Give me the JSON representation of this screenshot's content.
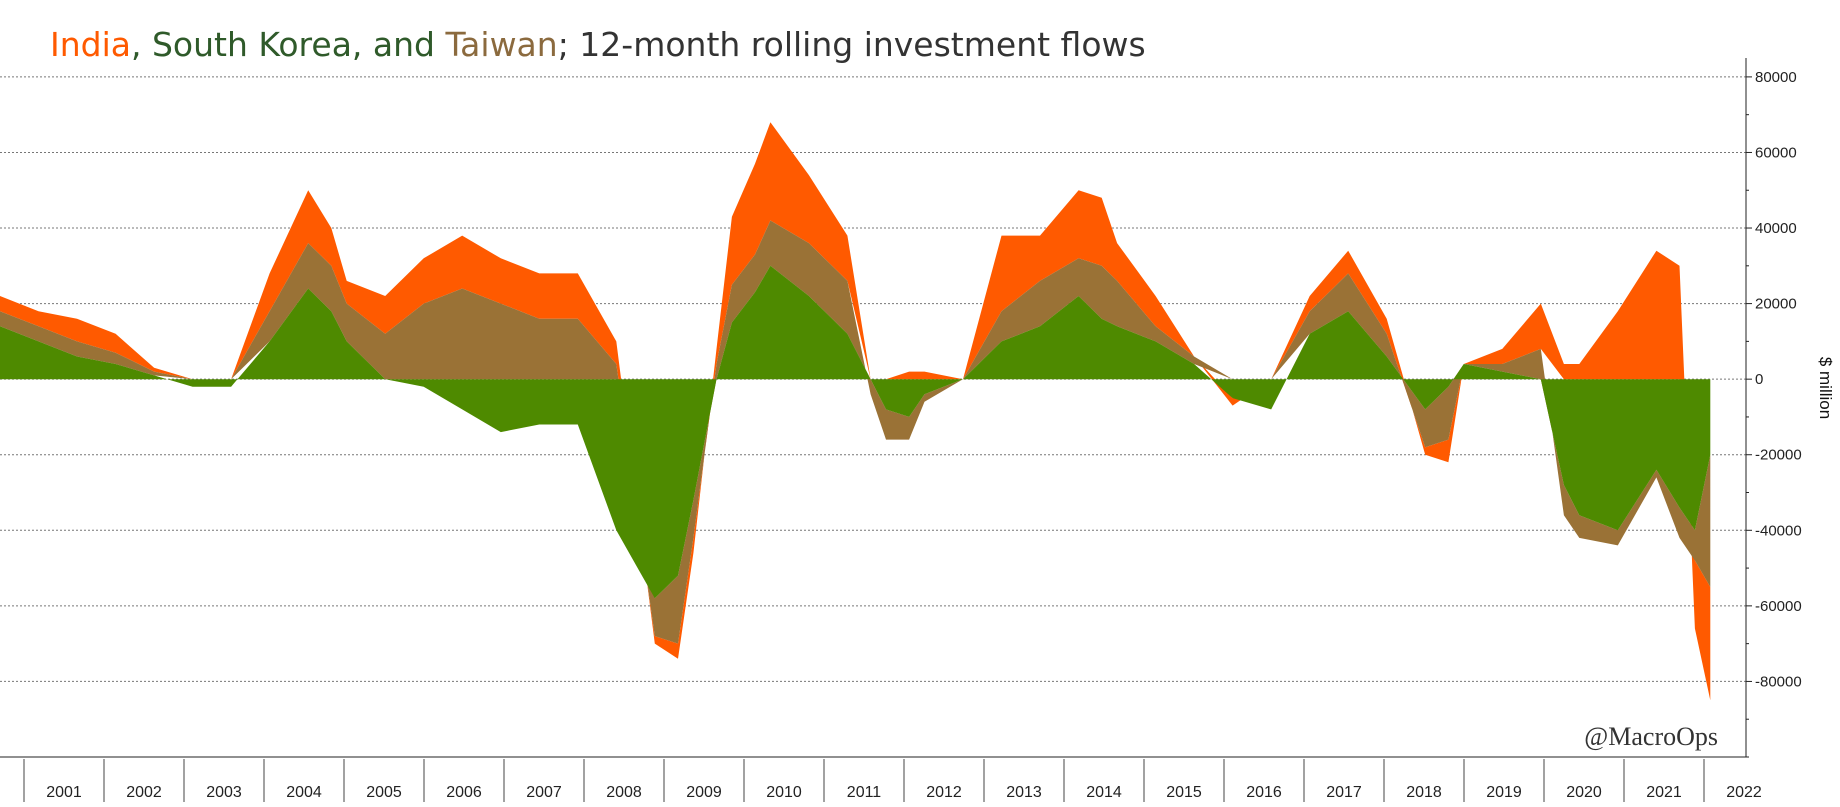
{
  "chart_data": {
    "type": "area",
    "title": {
      "parts": [
        {
          "text": "India",
          "color": "#FF5A00"
        },
        {
          "text": ", South Korea, and ",
          "color": "#2F5A2A"
        },
        {
          "text": "Taiwan",
          "color": "#8B6A3E"
        },
        {
          "text": "; 12-month rolling investment flows",
          "color": "#333333"
        }
      ]
    },
    "ylabel": "$ million",
    "xlabel": "",
    "ylim": [
      -100000,
      85000
    ],
    "xlim": [
      2000.0,
      2022.3
    ],
    "y_ticks": [
      80000,
      60000,
      40000,
      20000,
      0,
      -20000,
      -40000,
      -60000,
      -80000
    ],
    "y_tick_labels": [
      "80000",
      "60000",
      "40000",
      "20000",
      "0",
      "-20000",
      "-40000",
      "-60000",
      "-80000"
    ],
    "x_tick_labels": [
      "2001",
      "2002",
      "2003",
      "2004",
      "2005",
      "2006",
      "2007",
      "2008",
      "2009",
      "2010",
      "2011",
      "2012",
      "2013",
      "2014",
      "2015",
      "2016",
      "2017",
      "2018",
      "2019",
      "2020",
      "2021",
      "2022"
    ],
    "grid": "horizontal-dotted",
    "legend": "in-title",
    "watermark": "@MacroOps",
    "colors": {
      "korea": "#4E8A00",
      "taiwan": "#9A7236",
      "india": "#FF5A00"
    },
    "x": [
      2000.0,
      2000.5,
      2001.0,
      2001.5,
      2002.0,
      2002.5,
      2003.0,
      2003.5,
      2004.0,
      2004.3,
      2004.5,
      2005.0,
      2005.5,
      2006.0,
      2006.5,
      2007.0,
      2007.5,
      2008.0,
      2008.5,
      2008.8,
      2009.0,
      2009.3,
      2009.5,
      2009.8,
      2010.0,
      2010.5,
      2011.0,
      2011.3,
      2011.5,
      2011.8,
      2012.0,
      2012.5,
      2013.0,
      2013.5,
      2014.0,
      2014.3,
      2014.5,
      2015.0,
      2015.5,
      2016.0,
      2016.5,
      2017.0,
      2017.5,
      2018.0,
      2018.5,
      2018.8,
      2019.0,
      2019.5,
      2020.0,
      2020.3,
      2020.5,
      2021.0,
      2021.5,
      2021.8,
      2022.0,
      2022.2
    ],
    "series": [
      {
        "name": "South Korea",
        "values": [
          14000,
          10000,
          6000,
          4000,
          1000,
          -2000,
          -2000,
          10000,
          24000,
          18000,
          10000,
          0,
          -2000,
          -8000,
          -14000,
          -12000,
          -12000,
          -40000,
          -58000,
          -52000,
          -32000,
          0,
          15000,
          23000,
          30000,
          22000,
          12000,
          0,
          -8000,
          -10000,
          -4000,
          0,
          10000,
          14000,
          22000,
          16000,
          14000,
          10000,
          4000,
          -5000,
          -8000,
          12000,
          18000,
          6000,
          -8000,
          -2000,
          4000,
          2000,
          0,
          -28000,
          -36000,
          -40000,
          -24000,
          -34000,
          -40000,
          -20000
        ]
      },
      {
        "name": "Taiwan",
        "values": [
          4000,
          4000,
          4000,
          3000,
          1000,
          0,
          0,
          8000,
          12000,
          12000,
          10000,
          12000,
          20000,
          24000,
          20000,
          16000,
          16000,
          4000,
          -10000,
          -18000,
          -10000,
          4000,
          10000,
          10000,
          12000,
          14000,
          14000,
          -4000,
          -8000,
          -6000,
          -2000,
          0,
          8000,
          12000,
          10000,
          14000,
          12000,
          4000,
          2000,
          0,
          0,
          6000,
          10000,
          6000,
          -10000,
          -14000,
          0,
          2000,
          8000,
          -8000,
          -6000,
          -4000,
          -2000,
          -8000,
          -8000,
          -35000
        ]
      },
      {
        "name": "India",
        "values": [
          4000,
          4000,
          6000,
          5000,
          1000,
          0,
          0,
          10000,
          14000,
          10000,
          6000,
          10000,
          12000,
          14000,
          12000,
          12000,
          12000,
          6000,
          -2000,
          -4000,
          -4000,
          4000,
          18000,
          24000,
          26000,
          18000,
          12000,
          0,
          0,
          2000,
          2000,
          0,
          20000,
          12000,
          18000,
          18000,
          10000,
          8000,
          0,
          -2000,
          0,
          4000,
          6000,
          4000,
          -2000,
          -6000,
          0,
          4000,
          12000,
          4000,
          4000,
          18000,
          34000,
          30000,
          -18000,
          -30000
        ]
      }
    ]
  }
}
